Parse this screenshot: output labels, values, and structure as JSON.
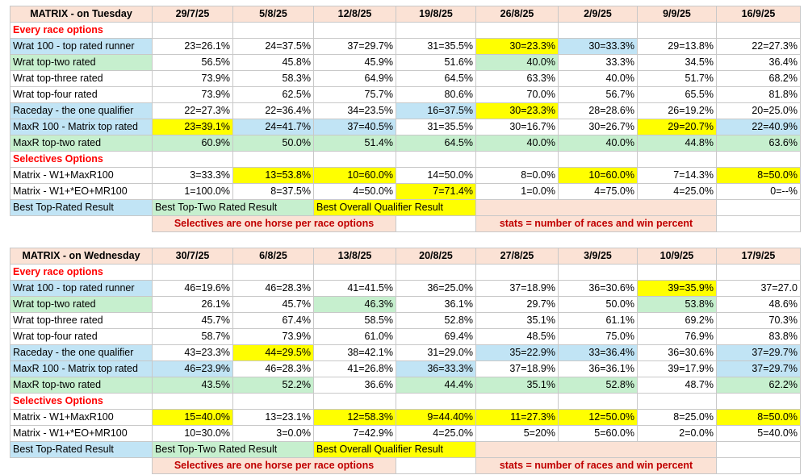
{
  "tables": [
    {
      "title": "MATRIX - on Tuesday",
      "dates": [
        "29/7/25",
        "5/8/25",
        "12/8/25",
        "19/8/25",
        "26/8/25",
        "2/9/25",
        "9/9/25",
        "16/9/25"
      ],
      "section1": "Every race options",
      "rows1": [
        {
          "label": "Wrat 100 - top rated runner",
          "lc": "c-blue",
          "cells": [
            "23=26.1%",
            "24=37.5%",
            "37=29.7%",
            "31=35.5%",
            "30=23.3%",
            "30=33.3%",
            "29=13.8%",
            "22=27.3%"
          ],
          "cc": [
            "",
            "",
            "",
            "",
            "c-yellow",
            "c-blue",
            "",
            ""
          ]
        },
        {
          "label": "Wrat top-two rated",
          "lc": "c-green",
          "cells": [
            "56.5%",
            "45.8%",
            "45.9%",
            "51.6%",
            "40.0%",
            "33.3%",
            "34.5%",
            "36.4%"
          ],
          "cc": [
            "",
            "",
            "",
            "",
            "c-green",
            "",
            "",
            ""
          ]
        },
        {
          "label": "Wrat top-three rated",
          "lc": "",
          "cells": [
            "73.9%",
            "58.3%",
            "64.9%",
            "64.5%",
            "63.3%",
            "40.0%",
            "51.7%",
            "68.2%"
          ],
          "cc": [
            "",
            "",
            "",
            "",
            "",
            "",
            "",
            ""
          ]
        },
        {
          "label": "Wrat top-four rated",
          "lc": "",
          "cells": [
            "73.9%",
            "62.5%",
            "75.7%",
            "80.6%",
            "70.0%",
            "56.7%",
            "65.5%",
            "81.8%"
          ],
          "cc": [
            "",
            "",
            "",
            "",
            "",
            "",
            "",
            ""
          ]
        },
        {
          "label": "Raceday - the one qualifier",
          "lc": "c-blue",
          "cells": [
            "22=27.3%",
            "22=36.4%",
            "34=23.5%",
            "16=37.5%",
            "30=23.3%",
            "28=28.6%",
            "26=19.2%",
            "20=25.0%"
          ],
          "cc": [
            "",
            "",
            "",
            "c-blue",
            "c-yellow",
            "",
            "",
            ""
          ]
        },
        {
          "label": "MaxR 100 - Matrix top rated",
          "lc": "c-blue",
          "cells": [
            "23=39.1%",
            "24=41.7%",
            "37=40.5%",
            "31=35.5%",
            "30=16.7%",
            "30=26.7%",
            "29=20.7%",
            "22=40.9%"
          ],
          "cc": [
            "c-yellow",
            "c-blue",
            "c-blue",
            "",
            "",
            "",
            "c-yellow",
            "c-blue"
          ]
        },
        {
          "label": "MaxR top-two rated",
          "lc": "c-green",
          "cells": [
            "60.9%",
            "50.0%",
            "51.4%",
            "64.5%",
            "40.0%",
            "40.0%",
            "44.8%",
            "63.6%"
          ],
          "cc": [
            "c-green",
            "c-green",
            "c-green",
            "c-green",
            "c-green",
            "c-green",
            "c-green",
            "c-green"
          ]
        }
      ],
      "section2": "Selectives Options",
      "rows2": [
        {
          "label": "Matrix - W1+MaxR100",
          "lc": "",
          "cells": [
            "3=33.3%",
            "13=53.8%",
            "10=60.0%",
            "14=50.0%",
            "8=0.0%",
            "10=60.0%",
            "7=14.3%",
            "8=50.0%"
          ],
          "cc": [
            "",
            "c-yellow",
            "c-yellow",
            "",
            "",
            "c-yellow",
            "",
            "c-yellow"
          ]
        },
        {
          "label": "Matrix - W1+*EO+MR100",
          "lc": "",
          "cells": [
            "1=100.0%",
            "8=37.5%",
            "4=50.0%",
            "7=71.4%",
            "1=0.0%",
            "4=75.0%",
            "4=25.0%",
            "0=--%"
          ],
          "cc": [
            "",
            "",
            "",
            "c-yellow",
            "",
            "",
            "",
            ""
          ]
        }
      ],
      "legend": [
        "Best Top-Rated Result",
        "Best Top-Two Rated Result",
        "Best Overall Qualifier Result"
      ],
      "notes": [
        "Selectives are one horse per race options",
        "stats = number of races and win percent"
      ]
    },
    {
      "title": "MATRIX - on Wednesday",
      "dates": [
        "30/7/25",
        "6/8/25",
        "13/8/25",
        "20/8/25",
        "27/8/25",
        "3/9/25",
        "10/9/25",
        "17/9/25"
      ],
      "section1": "Every race options",
      "rows1": [
        {
          "label": "Wrat 100 - top rated runner",
          "lc": "c-blue",
          "cells": [
            "46=19.6%",
            "46=28.3%",
            "41=41.5%",
            "36=25.0%",
            "37=18.9%",
            "36=30.6%",
            "39=35.9%",
            "37=27.0"
          ],
          "cc": [
            "",
            "",
            "",
            "",
            "",
            "",
            "c-yellow",
            ""
          ]
        },
        {
          "label": "Wrat top-two rated",
          "lc": "c-green",
          "cells": [
            "26.1%",
            "45.7%",
            "46.3%",
            "36.1%",
            "29.7%",
            "50.0%",
            "53.8%",
            "48.6%"
          ],
          "cc": [
            "",
            "",
            "c-green",
            "",
            "",
            "",
            "c-green",
            ""
          ]
        },
        {
          "label": "Wrat top-three rated",
          "lc": "",
          "cells": [
            "45.7%",
            "67.4%",
            "58.5%",
            "52.8%",
            "35.1%",
            "61.1%",
            "69.2%",
            "70.3%"
          ],
          "cc": [
            "",
            "",
            "",
            "",
            "",
            "",
            "",
            ""
          ]
        },
        {
          "label": "Wrat top-four rated",
          "lc": "",
          "cells": [
            "58.7%",
            "73.9%",
            "61.0%",
            "69.4%",
            "48.5%",
            "75.0%",
            "76.9%",
            "83.8%"
          ],
          "cc": [
            "",
            "",
            "",
            "",
            "",
            "",
            "",
            ""
          ]
        },
        {
          "label": "Raceday - the one qualifier",
          "lc": "c-blue",
          "cells": [
            "43=23.3%",
            "44=29.5%",
            "38=42.1%",
            "31=29.0%",
            "35=22.9%",
            "33=36.4%",
            "36=30.6%",
            "37=29.7%"
          ],
          "cc": [
            "",
            "c-yellow",
            "",
            "",
            "c-blue",
            "c-blue",
            "",
            "c-blue"
          ]
        },
        {
          "label": "MaxR 100 - Matrix top rated",
          "lc": "c-blue",
          "cells": [
            "46=23.9%",
            "46=28.3%",
            "41=26.8%",
            "36=33.3%",
            "37=18.9%",
            "36=36.1%",
            "39=17.9%",
            "37=29.7%"
          ],
          "cc": [
            "c-blue",
            "",
            "",
            "c-blue",
            "",
            "",
            "",
            "c-blue"
          ]
        },
        {
          "label": "MaxR top-two rated",
          "lc": "c-green",
          "cells": [
            "43.5%",
            "52.2%",
            "36.6%",
            "44.4%",
            "35.1%",
            "52.8%",
            "48.7%",
            "62.2%"
          ],
          "cc": [
            "c-green",
            "c-green",
            "",
            "c-green",
            "c-green",
            "c-green",
            "",
            "c-green"
          ]
        }
      ],
      "section2": "Selectives Options",
      "rows2": [
        {
          "label": "Matrix - W1+MaxR100",
          "lc": "",
          "cells": [
            "15=40.0%",
            "13=23.1%",
            "12=58.3%",
            "9=44.40%",
            "11=27.3%",
            "12=50.0%",
            "8=25.0%",
            "8=50.0%"
          ],
          "cc": [
            "c-yellow",
            "",
            "c-yellow",
            "c-yellow",
            "c-yellow",
            "c-yellow",
            "",
            "c-yellow"
          ]
        },
        {
          "label": "Matrix - W1+*EO+MR100",
          "lc": "",
          "cells": [
            "10=30.0%",
            "3=0.0%",
            "7=42.9%",
            "4=25.0%",
            "5=20%",
            "5=60.0%",
            "2=0.0%",
            "5=40.0%"
          ],
          "cc": [
            "",
            "",
            "",
            "",
            "",
            "",
            "",
            ""
          ]
        }
      ],
      "legend": [
        "Best Top-Rated Result",
        "Best Top-Two Rated Result",
        "Best Overall Qualifier Result"
      ],
      "notes": [
        "Selectives are one horse per race options",
        "stats = number of races and win percent"
      ]
    }
  ]
}
